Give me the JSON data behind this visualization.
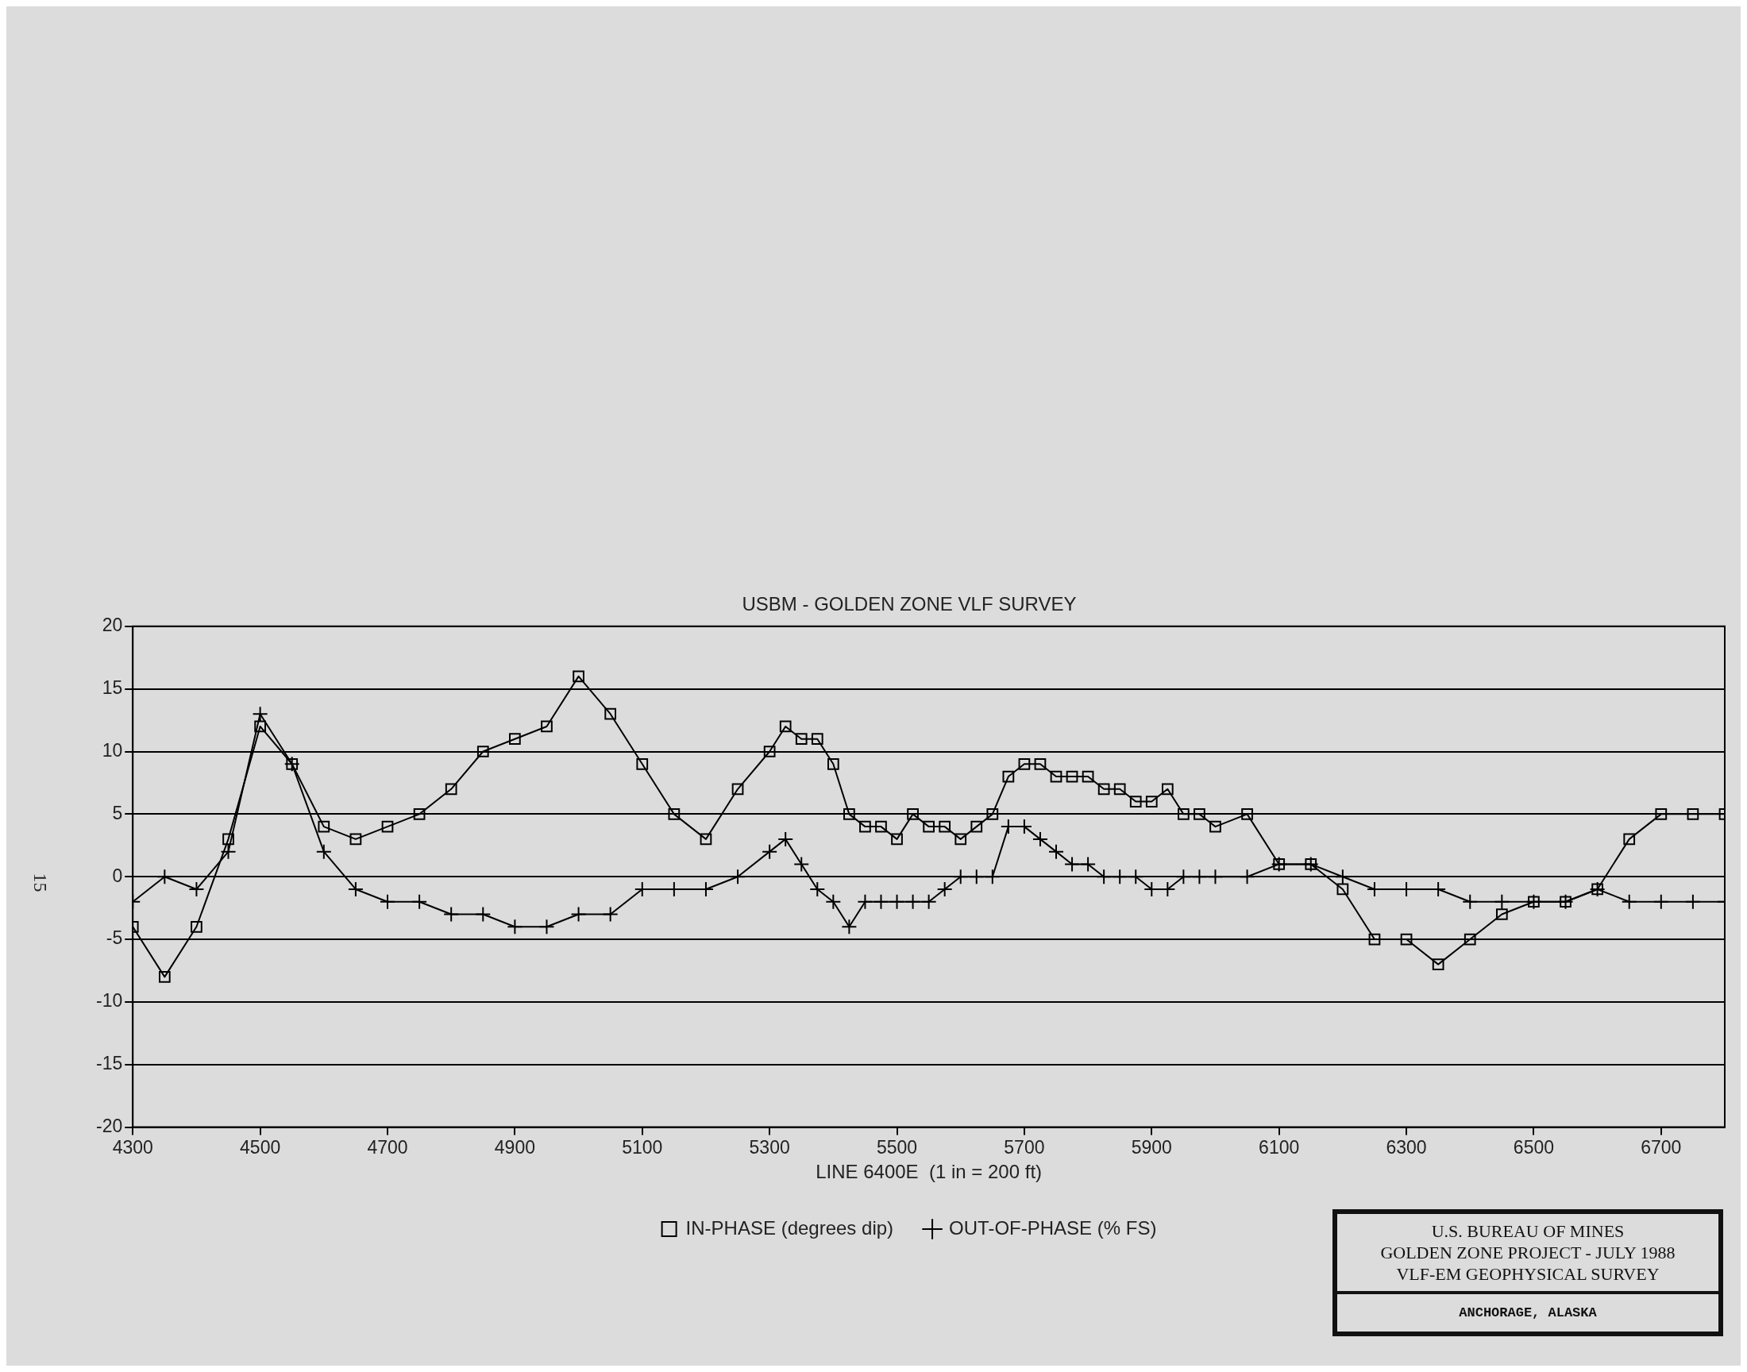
{
  "chart_data": {
    "type": "line",
    "title": "USBM - GOLDEN ZONE VLF SURVEY",
    "xlabel": "LINE 6400E  (1 in = 200 ft)",
    "x": [
      4300,
      4350,
      4400,
      4450,
      4500,
      4550,
      4600,
      4650,
      4700,
      4750,
      4800,
      4850,
      4900,
      4950,
      5000,
      5050,
      5100,
      5150,
      5200,
      5250,
      5300,
      5325,
      5350,
      5375,
      5400,
      5425,
      5450,
      5475,
      5500,
      5525,
      5550,
      5575,
      5600,
      5625,
      5650,
      5675,
      5700,
      5725,
      5750,
      5775,
      5800,
      5825,
      5850,
      5875,
      5900,
      5925,
      5950,
      5975,
      6000,
      6050,
      6100,
      6150,
      6200,
      6250,
      6300,
      6350,
      6400,
      6450,
      6500,
      6550,
      6600,
      6650,
      6700,
      6750,
      6800
    ],
    "series": [
      {
        "name": "IN-PHASE (degrees dip)",
        "color": "#000000",
        "marker": "square",
        "values": [
          -4,
          -8,
          -4,
          3,
          12,
          9,
          4,
          3,
          4,
          5,
          7,
          10,
          11,
          12,
          16,
          13,
          9,
          5,
          3,
          7,
          10,
          12,
          11,
          11,
          9,
          5,
          4,
          4,
          3,
          5,
          4,
          4,
          3,
          4,
          5,
          8,
          9,
          9,
          8,
          8,
          8,
          7,
          7,
          6,
          6,
          7,
          5,
          5,
          4,
          5,
          1,
          1,
          -1,
          -5,
          -5,
          -7,
          -5,
          -3,
          -2,
          -2,
          -1,
          3,
          5,
          5,
          5
        ]
      },
      {
        "name": "OUT-OF-PHASE (% FS)",
        "color": "#000000",
        "marker": "cross",
        "values": [
          -2,
          0,
          -1,
          2,
          13,
          9,
          2,
          -1,
          -2,
          -2,
          -3,
          -3,
          -4,
          -4,
          -3,
          -3,
          -1,
          -1,
          -1,
          0,
          2,
          3,
          1,
          -1,
          -2,
          -4,
          -2,
          -2,
          -2,
          -2,
          -2,
          -1,
          0,
          0,
          0,
          4,
          4,
          3,
          2,
          1,
          1,
          0,
          0,
          0,
          -1,
          -1,
          0,
          0,
          0,
          0,
          1,
          1,
          0,
          -1,
          -1,
          -1,
          -2,
          -2,
          -2,
          -2,
          -1,
          -2,
          -2,
          -2,
          -2
        ]
      }
    ],
    "xlim": [
      4300,
      6800
    ],
    "xticks": [
      4300,
      4500,
      4700,
      4900,
      5100,
      5300,
      5500,
      5700,
      5900,
      6100,
      6300,
      6500,
      6700
    ],
    "ylim": [
      -20,
      20
    ],
    "yticks": [
      -20,
      -15,
      -10,
      -5,
      0,
      5,
      10,
      15,
      20
    ],
    "grid": "y",
    "legend": "bottom",
    "line_style": "solid",
    "annotations": [
      "U.S. BUREAU OF MINES",
      "GOLDEN ZONE PROJECT  -  JULY 1988",
      "VLF-EM  GEOPHYSICAL SURVEY",
      "ANCHORAGE, ALASKA",
      "15"
    ]
  }
}
